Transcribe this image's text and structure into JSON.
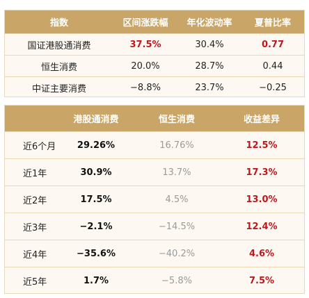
{
  "table1": {
    "headers": [
      "指数",
      "区间涨跌幅",
      "年化波动率",
      "夏普比率"
    ],
    "rows": [
      {
        "index": "国证港股通消费",
        "change": "37.5%",
        "volatility": "30.4%",
        "sharpe": "0.77"
      },
      {
        "index": "恒生消费",
        "change": "20.0%",
        "volatility": "28.7%",
        "sharpe": "0.44"
      },
      {
        "index": "中证主要消费",
        "change": "−8.8%",
        "volatility": "23.7%",
        "sharpe": "−0.25"
      }
    ]
  },
  "table2": {
    "headers": [
      "",
      "港股通消费",
      "恒生消费",
      "收益差异"
    ],
    "rows": [
      {
        "period": "近6个月",
        "hk_connect": "29.26%",
        "hang_seng": "16.76%",
        "diff": "12.5%"
      },
      {
        "period": "近1年",
        "hk_connect": "30.9%",
        "hang_seng": "13.7%",
        "diff": "17.3%"
      },
      {
        "period": "近2年",
        "hk_connect": "17.5%",
        "hang_seng": "4.5%",
        "diff": "13.0%"
      },
      {
        "period": "近3年",
        "hk_connect": "−2.1%",
        "hang_seng": "−14.5%",
        "diff": "12.4%"
      },
      {
        "period": "近4年",
        "hk_connect": "−35.6%",
        "hang_seng": "−40.2%",
        "diff": "4.6%"
      },
      {
        "period": "近5年",
        "hk_connect": "1.7%",
        "hang_seng": "−5.8%",
        "diff": "7.5%"
      }
    ]
  },
  "colors": {
    "header_bg": "#c9a567",
    "body_bg": "#fdf9f2",
    "accent_red": "#c0161d",
    "muted_grey": "#9a9a9a"
  }
}
